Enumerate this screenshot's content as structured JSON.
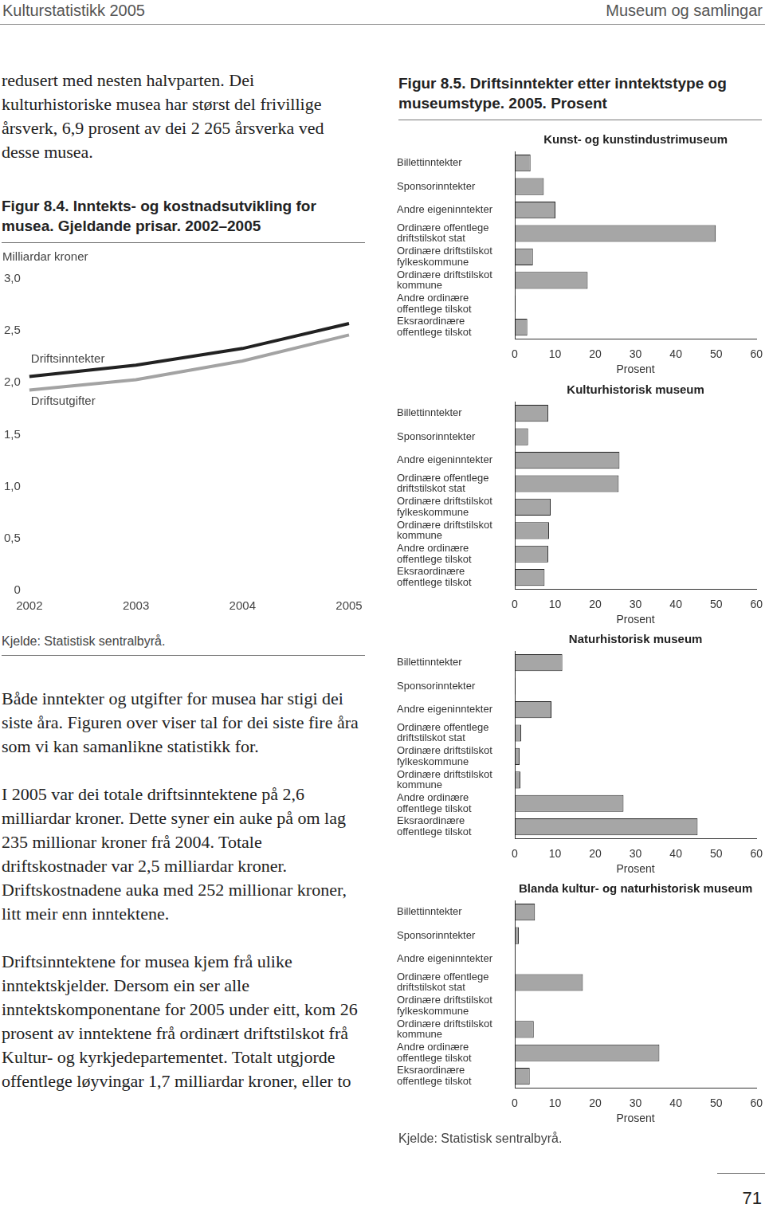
{
  "header": {
    "left": "Kulturstatistikk 2005",
    "right": "Museum og samlingar"
  },
  "left_column": {
    "paragraphs_before": [
      "redusert med nesten halvparten. Dei kulturhistoriske musea har størst del frivillige årsverk, 6,9 prosent av dei 2 265 årsverka ved desse musea."
    ],
    "source": "Kjelde: Statistisk sentralbyrå.",
    "paragraphs_after": [
      "Både inntekter og utgifter for musea har stigi dei siste åra. Figuren over viser tal for dei siste fire åra som vi kan samanlikne statistikk for.",
      "I 2005 var dei totale driftsinntektene på 2,6 milliardar kroner. Dette syner ein auke på om lag 235 millionar kroner frå 2004. Totale driftskostnader var 2,5 milliardar kroner. Driftskostnadene auka med 252 millionar kroner, litt meir enn inntektene.",
      "Driftsinntektene for musea kjem frå ulike inntektskjelder. Dersom ein ser alle inntektskomponentane for 2005 under eitt, kom 26 prosent av inntektene frå ordinært driftstilskot frå Kultur- og kyrkjedepartementet. Totalt utgjorde offentlege løyvingar 1,7 milliardar kroner, eller to"
    ]
  },
  "right_column": {
    "caption": "Figur 8.5. Driftsinntekter etter inntektstype og museumstype. 2005. Prosent",
    "source": "Kjelde: Statistisk sentralbyrå."
  },
  "page_number": 71,
  "chart_data": [
    {
      "type": "line",
      "title": "Figur 8.4. Inntekts- og kostnadsutvikling for musea. Gjeldande prisar. 2002–2005",
      "ylabel": "Milliardar kroner",
      "categories": [
        "2002",
        "2003",
        "2004",
        "2005"
      ],
      "series": [
        {
          "name": "Driftsinntekter",
          "color": "#222222",
          "values": [
            2.06,
            2.17,
            2.33,
            2.57
          ]
        },
        {
          "name": "Driftsutgifter",
          "color": "#a3a3a3",
          "values": [
            1.93,
            2.03,
            2.21,
            2.46
          ]
        }
      ],
      "ylim": [
        0,
        3
      ],
      "yticks": [
        0,
        {
          "value": 0.5,
          "label": "0,5"
        },
        {
          "value": 1,
          "label": "1,0"
        },
        {
          "value": 1.5,
          "label": "1,5"
        },
        {
          "value": 2,
          "label": "2,0"
        },
        {
          "value": 2.5,
          "label": "2,5"
        },
        {
          "value": 3,
          "label": "3,0"
        }
      ],
      "grid": false
    },
    {
      "type": "bar",
      "orientation": "horizontal",
      "title": "Kunst- og kunstindustrimuseum",
      "xlabel": "Prosent",
      "categories": [
        "Billettinntekter",
        "Sponsorinntekter",
        "Andre eigeninntekter",
        "Ordinære offentlege driftstilskot stat",
        "Ordinære driftstilskot fylkeskommune",
        "Ordinære driftstilskot kommune",
        "Andre ordinære offentlege tilskot",
        "Eksraordinære offentlege tilskot"
      ],
      "values": [
        3.9,
        7.2,
        10.1,
        49.9,
        4.5,
        18.1,
        0.2,
        3.1
      ],
      "color": "#a6a6a6",
      "xlim": [
        0,
        60
      ],
      "xticks": [
        0,
        10,
        20,
        30,
        40,
        50,
        60
      ],
      "grid": false
    },
    {
      "type": "bar",
      "orientation": "horizontal",
      "title": "Kulturhistorisk museum",
      "xlabel": "Prosent",
      "categories": [
        "Billettinntekter",
        "Sponsorinntekter",
        "Andre eigeninntekter",
        "Ordinære offentlege driftstilskot stat",
        "Ordinære driftstilskot fylkeskommune",
        "Ordinære driftstilskot kommune",
        "Andre ordinære offentlege tilskot",
        "Eksraordinære offentlege tilskot"
      ],
      "values": [
        8.3,
        3.3,
        26.0,
        25.8,
        8.9,
        8.5,
        8.3,
        7.4
      ],
      "color": "#a6a6a6",
      "xlim": [
        0,
        60
      ],
      "xticks": [
        0,
        10,
        20,
        30,
        40,
        50,
        60
      ],
      "grid": false
    },
    {
      "type": "bar",
      "orientation": "horizontal",
      "title": "Naturhistorisk museum",
      "xlabel": "Prosent",
      "categories": [
        "Billettinntekter",
        "Sponsorinntekter",
        "Andre eigeninntekter",
        "Ordinære offentlege driftstilskot stat",
        "Ordinære driftstilskot fylkeskommune",
        "Ordinære driftstilskot kommune",
        "Andre ordinære offentlege tilskot",
        "Eksraordinære offentlege tilskot"
      ],
      "values": [
        11.8,
        0.2,
        9.1,
        1.6,
        1.2,
        1.4,
        27.0,
        45.4
      ],
      "color": "#a6a6a6",
      "xlim": [
        0,
        60
      ],
      "xticks": [
        0,
        10,
        20,
        30,
        40,
        50,
        60
      ],
      "grid": false
    },
    {
      "type": "bar",
      "orientation": "horizontal",
      "title": "Blanda kultur- og naturhistorisk museum",
      "xlabel": "Prosent",
      "categories": [
        "Billettinntekter",
        "Sponsorinntekter",
        "Andre eigeninntekter",
        "Ordinære offentlege driftstilskot stat",
        "Ordinære driftstilskot fylkeskommune",
        "Ordinære driftstilskot kommune",
        "Andre ordinære offentlege tilskot",
        "Eksraordinære offentlege tilskot"
      ],
      "values": [
        5.0,
        1.0,
        0,
        16.9,
        0,
        4.7,
        35.9,
        3.7
      ],
      "color": "#a6a6a6",
      "xlim": [
        0,
        60
      ],
      "xticks": [
        0,
        10,
        20,
        30,
        40,
        50,
        60
      ],
      "grid": false
    }
  ]
}
